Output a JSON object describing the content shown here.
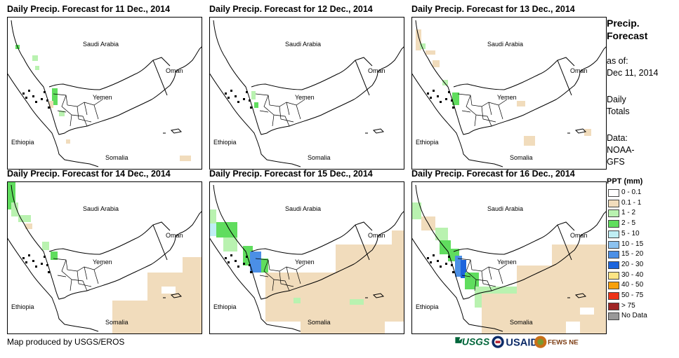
{
  "panels": [
    {
      "title": "Daily Precip. Forecast for 11 Dec., 2014"
    },
    {
      "title": "Daily Precip. Forecast for 12 Dec., 2014"
    },
    {
      "title": "Daily Precip. Forecast for 13 Dec., 2014"
    },
    {
      "title": "Daily Precip. Forecast for 14 Dec., 2014"
    },
    {
      "title": "Daily Precip. Forecast for 15 Dec., 2014"
    },
    {
      "title": "Daily Precip. Forecast for 16 Dec., 2014"
    }
  ],
  "map_labels": {
    "saudi": "Saudi Arabia",
    "oman": "Oman",
    "yemen": "Yemen",
    "ethiopia": "Ethiopia",
    "somalia": "Somalia"
  },
  "sidebar": {
    "title_line1": "Precip.",
    "title_line2": "Forecast",
    "asof_label": "as of:",
    "asof_date": "Dec 11, 2014",
    "daily1": "Daily",
    "daily2": "Totals",
    "data1": "Data:",
    "data2": "NOAA-",
    "data3": "GFS"
  },
  "legend": {
    "title": "PPT (mm)",
    "items": [
      {
        "label": "0 - 0.1",
        "color": "#ffffff"
      },
      {
        "label": "0.1 - 1",
        "color": "#f1dcbc"
      },
      {
        "label": "1 - 2",
        "color": "#b9f2b0"
      },
      {
        "label": "2 - 5",
        "color": "#60dd5e"
      },
      {
        "label": "5 - 10",
        "color": "#bfeef4"
      },
      {
        "label": "10 - 15",
        "color": "#8cc2ef"
      },
      {
        "label": "15 - 20",
        "color": "#4b8fe6"
      },
      {
        "label": "20 - 30",
        "color": "#1c64dc"
      },
      {
        "label": "30 - 40",
        "color": "#fde585"
      },
      {
        "label": "40 - 50",
        "color": "#f7a00c"
      },
      {
        "label": "50 - 75",
        "color": "#ee3318"
      },
      {
        "label": "> 75",
        "color": "#a02424"
      },
      {
        "label": "No Data",
        "color": "#999999"
      }
    ]
  },
  "footer": {
    "credit": "Map produced by USGS/EROS"
  },
  "logos": {
    "usgs": "USGS",
    "usaid": "USAID",
    "fews": "FEWS NET"
  }
}
